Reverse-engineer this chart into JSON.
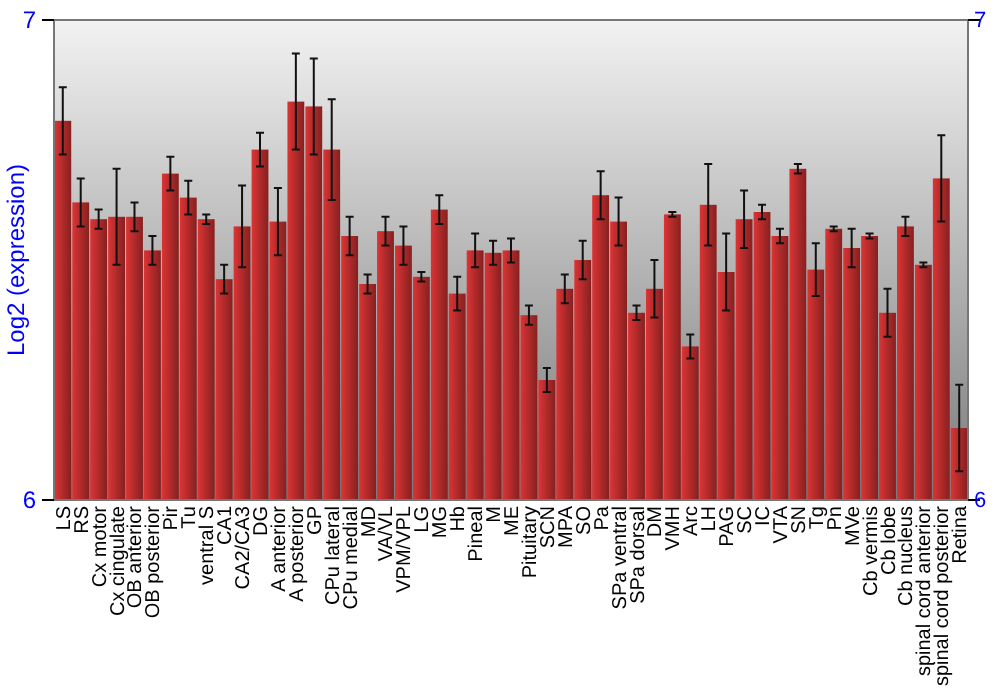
{
  "chart_data": {
    "type": "bar",
    "ylabel": "Log2 (expression)",
    "color": "#b22a2a",
    "categories": [
      "LS",
      "RS",
      "Cx motor",
      "Cx cingulate",
      "OB anterior",
      "OB posterior",
      "Pir",
      "Tu",
      "ventral S",
      "CA1",
      "CA2/CA3",
      "DG",
      "A anterior",
      "A posterior",
      "GP",
      "CPu lateral",
      "CPu medial",
      "MD",
      "VA/VL",
      "VPM/VPL",
      "LG",
      "MG",
      "Hb",
      "Pineal",
      "M",
      "ME",
      "Pituitary",
      "SCN",
      "MPA",
      "SO",
      "Pa",
      "SPa ventral",
      "SPa dorsal",
      "DM",
      "VMH",
      "Arc",
      "LH",
      "PAG",
      "SC",
      "IC",
      "VTA",
      "SN",
      "Tg",
      "Pn",
      "MVe",
      "Cb vermis",
      "Cb lobe",
      "Cb nucleus",
      "spinal cord anterior",
      "spinal cord posterior",
      "Retina"
    ],
    "values": [
      6.79,
      6.62,
      6.585,
      6.59,
      6.59,
      6.52,
      6.68,
      6.63,
      6.585,
      6.46,
      6.57,
      6.73,
      6.58,
      6.83,
      6.82,
      6.73,
      6.55,
      6.45,
      6.56,
      6.53,
      6.465,
      6.605,
      6.43,
      6.52,
      6.515,
      6.52,
      6.385,
      6.25,
      6.44,
      6.5,
      6.635,
      6.58,
      6.39,
      6.44,
      6.595,
      6.32,
      6.615,
      6.475,
      6.585,
      6.6,
      6.55,
      6.69,
      6.48,
      6.565,
      6.525,
      6.55,
      6.39,
      6.57,
      6.49,
      6.67,
      6.15
    ],
    "errors": [
      0.07,
      0.05,
      0.02,
      0.1,
      0.03,
      0.03,
      0.035,
      0.035,
      0.01,
      0.03,
      0.085,
      0.035,
      0.07,
      0.1,
      0.1,
      0.105,
      0.04,
      0.02,
      0.03,
      0.04,
      0.01,
      0.03,
      0.035,
      0.035,
      0.025,
      0.025,
      0.02,
      0.025,
      0.03,
      0.04,
      0.05,
      0.05,
      0.015,
      0.06,
      0.005,
      0.025,
      0.085,
      0.08,
      0.06,
      0.015,
      0.015,
      0.01,
      0.055,
      0.005,
      0.04,
      0.005,
      0.05,
      0.02,
      0.005,
      0.09,
      0.09
    ],
    "ylim": [
      6,
      7
    ],
    "yticks": [
      6,
      7
    ],
    "y2lim": [
      6,
      7
    ],
    "y2ticks": [
      6,
      7
    ]
  }
}
